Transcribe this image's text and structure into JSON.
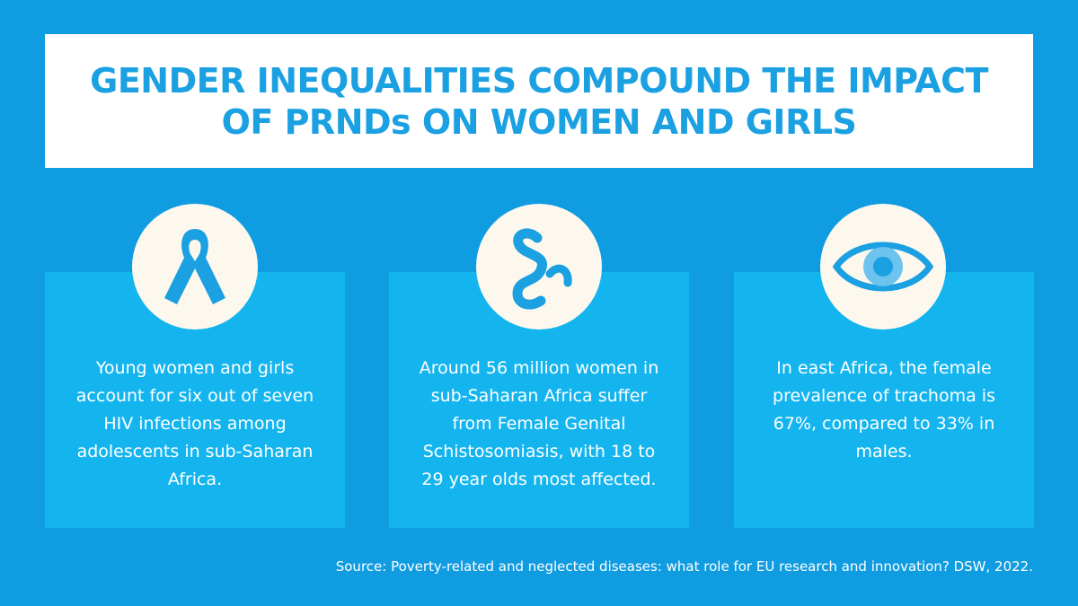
{
  "header": {
    "title": "GENDER INEQUALITIES COMPOUND THE IMPACT OF PRNDs ON WOMEN AND GIRLS"
  },
  "cards": [
    {
      "text": "Young women and girls account for six out of seven HIV infections among adolescents in sub-Saharan Africa."
    },
    {
      "text": "Around 56 million women in sub-Saharan Africa suffer from Female Genital Schistosomiasis, with 18 to 29 year olds most affected."
    },
    {
      "text": "In east Africa, the female prevalence of trachoma is 67%, compared to 33% in males."
    }
  ],
  "source": "Source: Poverty-related and neglected diseases: what role for EU research and innovation? DSW, 2022."
}
